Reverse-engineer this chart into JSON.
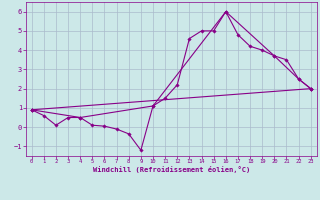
{
  "background_color": "#cce8e8",
  "line_color": "#880088",
  "grid_color": "#aabbcc",
  "xlabel": "Windchill (Refroidissement éolien,°C)",
  "xlim": [
    -0.5,
    23.5
  ],
  "ylim": [
    -1.5,
    6.5
  ],
  "yticks": [
    -1,
    0,
    1,
    2,
    3,
    4,
    5,
    6
  ],
  "xticks": [
    0,
    1,
    2,
    3,
    4,
    5,
    6,
    7,
    8,
    9,
    10,
    11,
    12,
    13,
    14,
    15,
    16,
    17,
    18,
    19,
    20,
    21,
    22,
    23
  ],
  "line1_x": [
    0,
    1,
    2,
    3,
    4,
    5,
    6,
    7,
    8,
    9,
    10,
    11,
    12,
    13,
    14,
    15,
    16,
    17,
    18,
    19,
    20,
    21,
    22,
    23
  ],
  "line1_y": [
    0.9,
    0.6,
    0.1,
    0.5,
    0.5,
    0.1,
    0.05,
    -0.1,
    -0.35,
    -1.2,
    1.1,
    1.5,
    2.2,
    4.6,
    5.0,
    5.0,
    6.0,
    4.8,
    4.2,
    4.0,
    3.7,
    3.5,
    2.5,
    2.0
  ],
  "line2_x": [
    0,
    4,
    10,
    16,
    20,
    22,
    23
  ],
  "line2_y": [
    0.9,
    0.5,
    1.1,
    6.0,
    3.7,
    2.5,
    2.0
  ],
  "line3_x": [
    0,
    23
  ],
  "line3_y": [
    0.9,
    2.0
  ]
}
